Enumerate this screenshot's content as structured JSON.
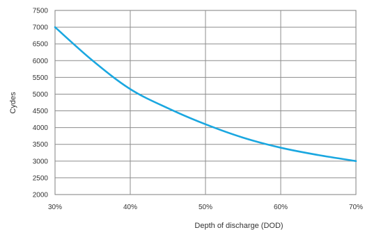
{
  "chart_data": {
    "type": "line",
    "xlabel": "Depth of discharge (DOD)",
    "ylabel": "Cydes",
    "x_ticks": [
      "30%",
      "40%",
      "50%",
      "60%",
      "70%"
    ],
    "x_tick_values": [
      30,
      40,
      50,
      60,
      70
    ],
    "xlim": [
      30,
      70
    ],
    "ylim": [
      2000,
      7500
    ],
    "y_ticks": [
      2000,
      2500,
      3000,
      3500,
      4000,
      4500,
      5000,
      5500,
      6000,
      6500,
      7000,
      7500
    ],
    "grid": true,
    "series": [
      {
        "color": "#1aa7e0",
        "x": [
          30,
          35,
          40,
          45,
          50,
          55,
          60,
          65,
          70
        ],
        "y": [
          7000,
          6000,
          5150,
          4580,
          4100,
          3700,
          3400,
          3180,
          3000
        ]
      }
    ]
  }
}
